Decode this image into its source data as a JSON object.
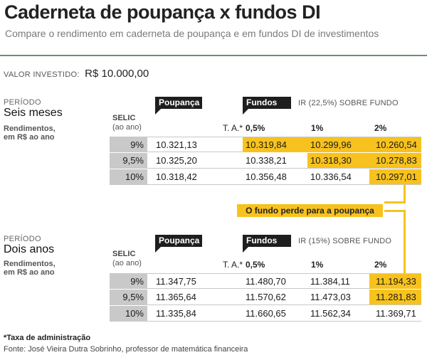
{
  "header": {
    "title": "Caderneta de poupança x fundos DI",
    "subtitle": "Compare o rendimento em caderneta de poupança e em fundos DI de investimentos"
  },
  "investment": {
    "label": "VALOR INVESTIDO:",
    "value": "R$ 10.000,00"
  },
  "colors": {
    "highlight": "#f7c21e",
    "tag_bg": "#1e1e1e",
    "rate_bg": "#c9c9c9",
    "rule": "#6f8c6f"
  },
  "labels": {
    "periodo": "PERÍODO",
    "rendimentos_1": "Rendimentos,",
    "rendimentos_2": "em R$ ao ano",
    "selic_1": "SELIC",
    "selic_2": "(ao ano)",
    "poupanca_tag": "Poupança",
    "fundos_tag": "Fundos",
    "ta": "T. A.*",
    "col_05": "0,5%",
    "col_1": "1%",
    "col_2": "2%"
  },
  "sections": [
    {
      "period": "Seis meses",
      "ir_label": "IR (22,5%) SOBRE FUNDO",
      "rows": [
        {
          "rate": "9%",
          "poupanca": "10.321,13",
          "f05": "10.319,84",
          "f1": "10.299,96",
          "f2": "10.260,54"
        },
        {
          "rate": "9,5%",
          "poupanca": "10.325,20",
          "f05": "10.338,21",
          "f1": "10.318,30",
          "f2": "10.278,83"
        },
        {
          "rate": "10%",
          "poupanca": "10.318,42",
          "f05": "10.356,48",
          "f1": "10.336,54",
          "f2": "10.297,01"
        }
      ]
    },
    {
      "period": "Dois anos",
      "ir_label": "IR (15%) SOBRE FUNDO",
      "rows": [
        {
          "rate": "9%",
          "poupanca": "11.347,75",
          "f05": "11.480,70",
          "f1": "11.384,11",
          "f2": "11.194,33"
        },
        {
          "rate": "9,5%",
          "poupanca": "11.365,64",
          "f05": "11.570,62",
          "f1": "11.473,03",
          "f2": "11.281,83"
        },
        {
          "rate": "10%",
          "poupanca": "11.335,84",
          "f05": "11.660,65",
          "f1": "11.562,34",
          "f2": "11.369,71"
        }
      ]
    }
  ],
  "callout": "O fundo perde para a poupança",
  "footer": {
    "note": "*Taxa de administração",
    "source": "Fonte: José Vieira Dutra Sobrinho, professor de matemática financeira"
  }
}
